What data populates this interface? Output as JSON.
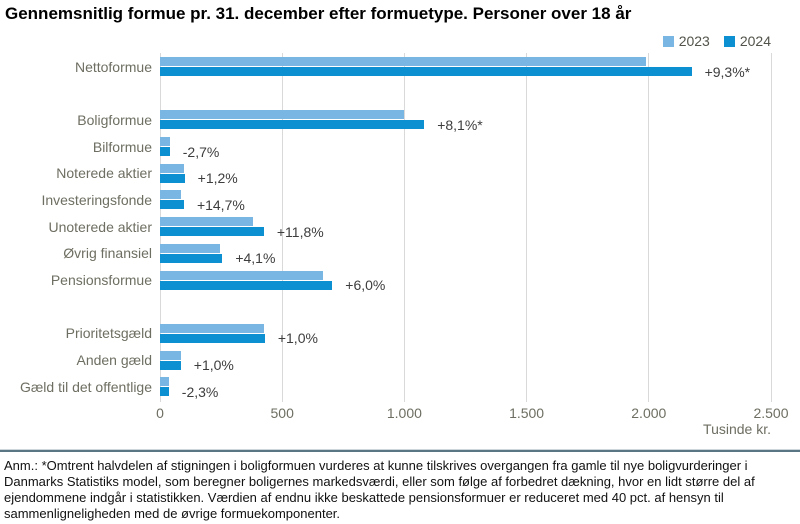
{
  "title": "Gennemsnitlig formue pr. 31. december efter formuetype. Personer over 18 år",
  "legend": {
    "items": [
      {
        "label": "2023",
        "color": "#7ab6e3"
      },
      {
        "label": "2024",
        "color": "#0d90d1"
      }
    ]
  },
  "colors": {
    "bar_2023": "#7ab6e3",
    "bar_2024": "#0d90d1",
    "gridline": "#d9d9d9",
    "category_text": "#6e6e62",
    "change_text": "#3d3d3d",
    "separator": "#587683"
  },
  "footnote": "Anm.: *Omtrent halvdelen af stigningen i boligformuen vurderes at kunne tilskrives overgangen fra gamle til nye boligvurderinger i Danmarks Statistiks model, som beregner boligernes markedsværdi, eller som følge af forbedret dækning, hvor en lidt større del af ejendommene indgår i statistikken. Værdien af endnu ikke beskattede pensionsformuer er reduceret med 40 pct. af hensyn til sammenligneligheden med de øvrige formuekomponenter.",
  "chart_data": {
    "type": "bar",
    "orientation": "horizontal",
    "title": "Gennemsnitlig formue pr. 31. december efter formuetype. Personer over 18 år",
    "xlabel_unit": "Tusinde kr.",
    "xlim": [
      0,
      2500
    ],
    "x_ticks": [
      0,
      500,
      1000,
      1500,
      2000,
      2500
    ],
    "x_tick_labels": [
      "0",
      "500",
      "1.000",
      "1.500",
      "2.000",
      "2.500"
    ],
    "grid": "vertical",
    "legend_position": "top-right",
    "categories": [
      "Nettoformue",
      "Boligformue",
      "Bilformue",
      "Noterede aktier",
      "Investeringsfonde",
      "Unoterede aktier",
      "Øvrig finansiel",
      "Pensionsformue",
      "Prioritetsgæld",
      "Anden gæld",
      "Gæld til det offentlige"
    ],
    "group_breaks_after": [
      0,
      7
    ],
    "series": [
      {
        "name": "2023",
        "color": "#7ab6e3",
        "values": [
          1990,
          1000,
          40,
          100,
          85,
          380,
          245,
          665,
          425,
          84,
          36
        ]
      },
      {
        "name": "2024",
        "color": "#0d90d1",
        "values": [
          2175,
          1081,
          39,
          101,
          98,
          425,
          255,
          705,
          429,
          85,
          35
        ]
      }
    ],
    "change_labels": [
      "+9,3%*",
      "+8,1%*",
      "-2,7%",
      "+1,2%",
      "+14,7%",
      "+11,8%",
      "+4,1%",
      "+6,0%",
      "+1,0%",
      "+1,0%",
      "-2,3%"
    ]
  }
}
